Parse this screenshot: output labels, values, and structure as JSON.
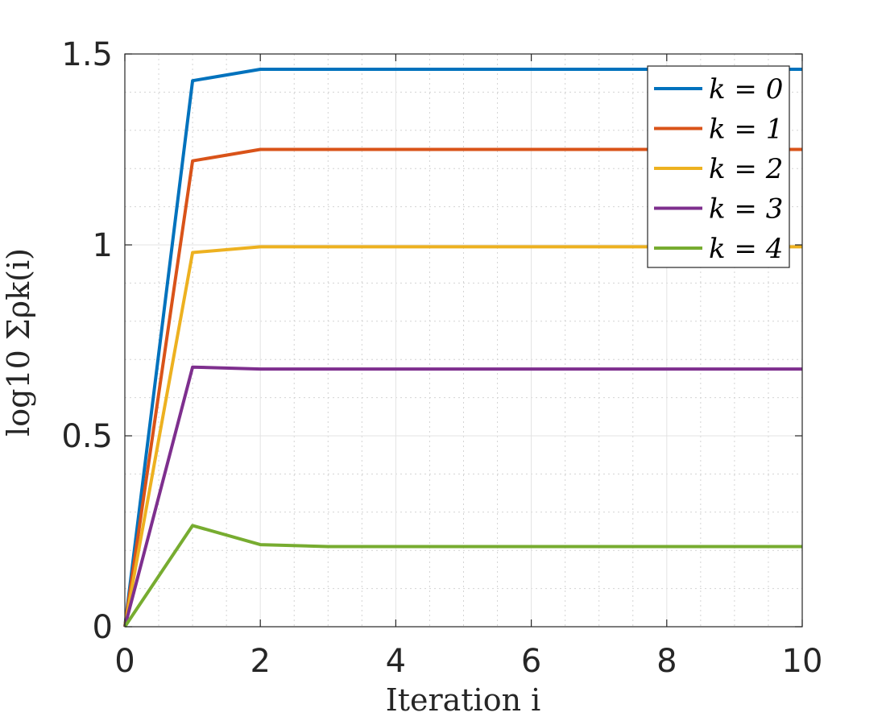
{
  "chart_data": {
    "type": "line",
    "xlabel": "Iteration i",
    "ylabel": "log10 Σρk(i)",
    "xlim": [
      0,
      10
    ],
    "ylim": [
      0,
      1.5
    ],
    "xticks": [
      "0",
      "2",
      "4",
      "6",
      "8",
      "10"
    ],
    "yticks": [
      "0",
      "0.5",
      "1",
      "1.5"
    ],
    "grid": true,
    "minor_grid": true,
    "legend_position": "top-right",
    "x": [
      0,
      1,
      2,
      3,
      4,
      5,
      6,
      7,
      8,
      9,
      10
    ],
    "series": [
      {
        "name": "k = 0",
        "color": "#0072BD",
        "values": [
          0,
          1.43,
          1.46,
          1.46,
          1.46,
          1.46,
          1.46,
          1.46,
          1.46,
          1.46,
          1.46
        ]
      },
      {
        "name": "k = 1",
        "color": "#D95319",
        "values": [
          0,
          1.22,
          1.25,
          1.25,
          1.25,
          1.25,
          1.25,
          1.25,
          1.25,
          1.25,
          1.25
        ]
      },
      {
        "name": "k = 2",
        "color": "#EDB120",
        "values": [
          0,
          0.98,
          0.995,
          0.995,
          0.995,
          0.995,
          0.995,
          0.995,
          0.995,
          0.995,
          0.995
        ]
      },
      {
        "name": "k = 3",
        "color": "#7E2F8E",
        "values": [
          0,
          0.68,
          0.675,
          0.675,
          0.675,
          0.675,
          0.675,
          0.675,
          0.675,
          0.675,
          0.675
        ]
      },
      {
        "name": "k = 4",
        "color": "#77AC30",
        "values": [
          0,
          0.265,
          0.215,
          0.21,
          0.21,
          0.21,
          0.21,
          0.21,
          0.21,
          0.21,
          0.21
        ]
      }
    ]
  }
}
